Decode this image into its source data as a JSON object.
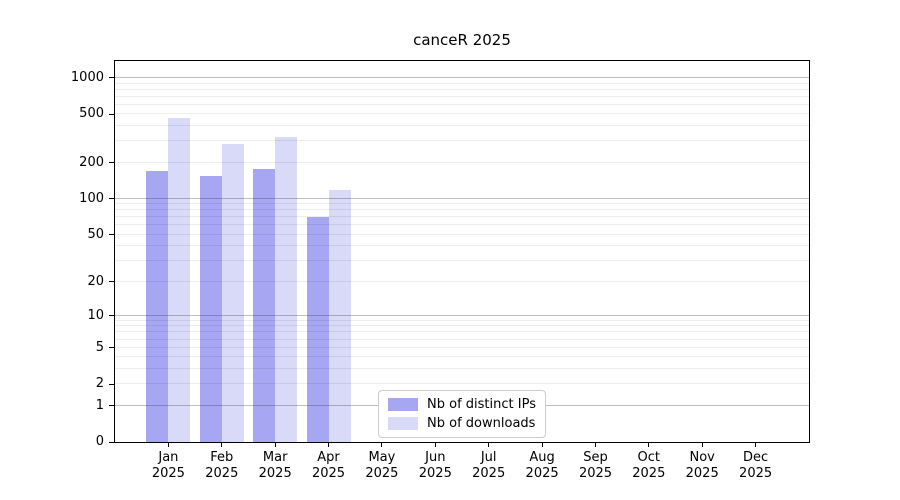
{
  "chart_data": {
    "type": "bar",
    "title": "canceR 2025",
    "categories": [
      "Jan",
      "Feb",
      "Mar",
      "Apr",
      "May",
      "Jun",
      "Jul",
      "Aug",
      "Sep",
      "Oct",
      "Nov",
      "Dec"
    ],
    "year_label": "2025",
    "series": [
      {
        "name": "Nb of distinct IPs",
        "color": "#a6a6f2",
        "values": [
          169,
          155,
          177,
          71,
          null,
          null,
          null,
          null,
          null,
          null,
          null,
          null
        ]
      },
      {
        "name": "Nb of downloads",
        "color": "#d9d9f8",
        "values": [
          465,
          285,
          325,
          118,
          null,
          null,
          null,
          null,
          null,
          null,
          null,
          null
        ]
      }
    ],
    "xlabel": "",
    "ylabel": "",
    "y_scale": "log1p",
    "y_ticks": [
      0,
      1,
      2,
      5,
      10,
      20,
      50,
      100,
      200,
      500,
      1000
    ],
    "y_minor_gridlines": [
      2,
      3,
      4,
      5,
      6,
      7,
      8,
      9,
      20,
      30,
      40,
      50,
      60,
      70,
      80,
      90,
      200,
      300,
      400,
      500,
      600,
      700,
      800,
      900
    ],
    "y_major_gridlines": [
      1,
      10,
      100,
      1000
    ],
    "ylim_top_value": 1400,
    "grid": "both",
    "legend_position": "lower center"
  },
  "colors": {
    "background": "#ffffff",
    "spine": "#000000",
    "grid_minor": "#ececec",
    "grid_major": "#a8a8a8",
    "legend_border": "#cccccc",
    "text": "#000000"
  }
}
